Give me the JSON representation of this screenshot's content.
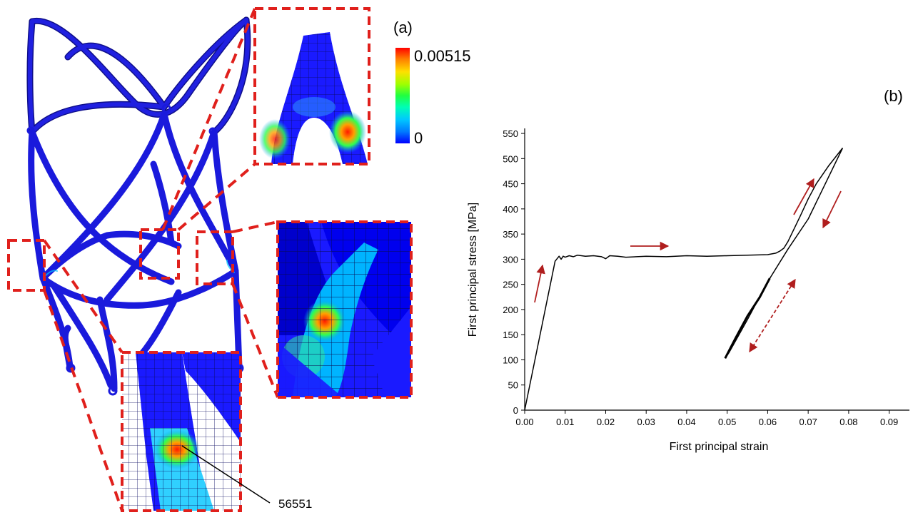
{
  "panel_a": {
    "label": "(a)",
    "colorbar": {
      "max_label": "0.00515",
      "min_label": "0",
      "colors": [
        "#0000ff",
        "#0078ff",
        "#00c8ff",
        "#00ffb4",
        "#20ff40",
        "#a0ff00",
        "#ffe000",
        "#ff8000",
        "#ff0000"
      ]
    },
    "node_label": "56551",
    "frame_color": "#1a1adc",
    "zoom_box_color": "#e0201c"
  },
  "panel_b": {
    "label": "(b)",
    "arrow_color": "#b01e1e"
  },
  "chart_data": {
    "type": "line",
    "title": "",
    "xlabel": "First principal strain",
    "ylabel": "First principal stress [MPa]",
    "xlim": [
      0,
      0.095
    ],
    "ylim": [
      0,
      560
    ],
    "xticks": [
      "0.00",
      "0.01",
      "0.02",
      "0.03",
      "0.04",
      "0.05",
      "0.06",
      "0.07",
      "0.08",
      "0.09"
    ],
    "yticks": [
      "0",
      "50",
      "100",
      "150",
      "200",
      "250",
      "300",
      "350",
      "400",
      "450",
      "500",
      "550"
    ],
    "grid": false,
    "series": [
      {
        "x": [
          0.0,
          0.0075,
          0.0085,
          0.009,
          0.0095,
          0.01,
          0.011,
          0.012,
          0.013,
          0.015,
          0.017,
          0.019,
          0.02,
          0.021,
          0.023,
          0.025,
          0.03,
          0.035,
          0.04,
          0.045,
          0.05,
          0.055,
          0.06,
          0.062,
          0.063,
          0.064,
          0.065,
          0.0665,
          0.068,
          0.07,
          0.072,
          0.075,
          0.0785
        ],
        "y": [
          0,
          296,
          306,
          300,
          306,
          304,
          307,
          305,
          308,
          306,
          307,
          305,
          301,
          307,
          306,
          304,
          306,
          305,
          307,
          306,
          307,
          308,
          309,
          312,
          316,
          322,
          335,
          360,
          385,
          420,
          450,
          485,
          521
        ]
      },
      {
        "x": [
          0.0785,
          0.07,
          0.065,
          0.06,
          0.055,
          0.0505,
          0.0495
        ],
        "y": [
          521,
          380,
          320,
          255,
          180,
          115,
          103
        ]
      },
      {
        "x": [
          0.0495,
          0.052,
          0.055,
          0.058,
          0.0605
        ],
        "y": [
          103,
          142,
          187,
          224,
          262
        ]
      }
    ]
  }
}
